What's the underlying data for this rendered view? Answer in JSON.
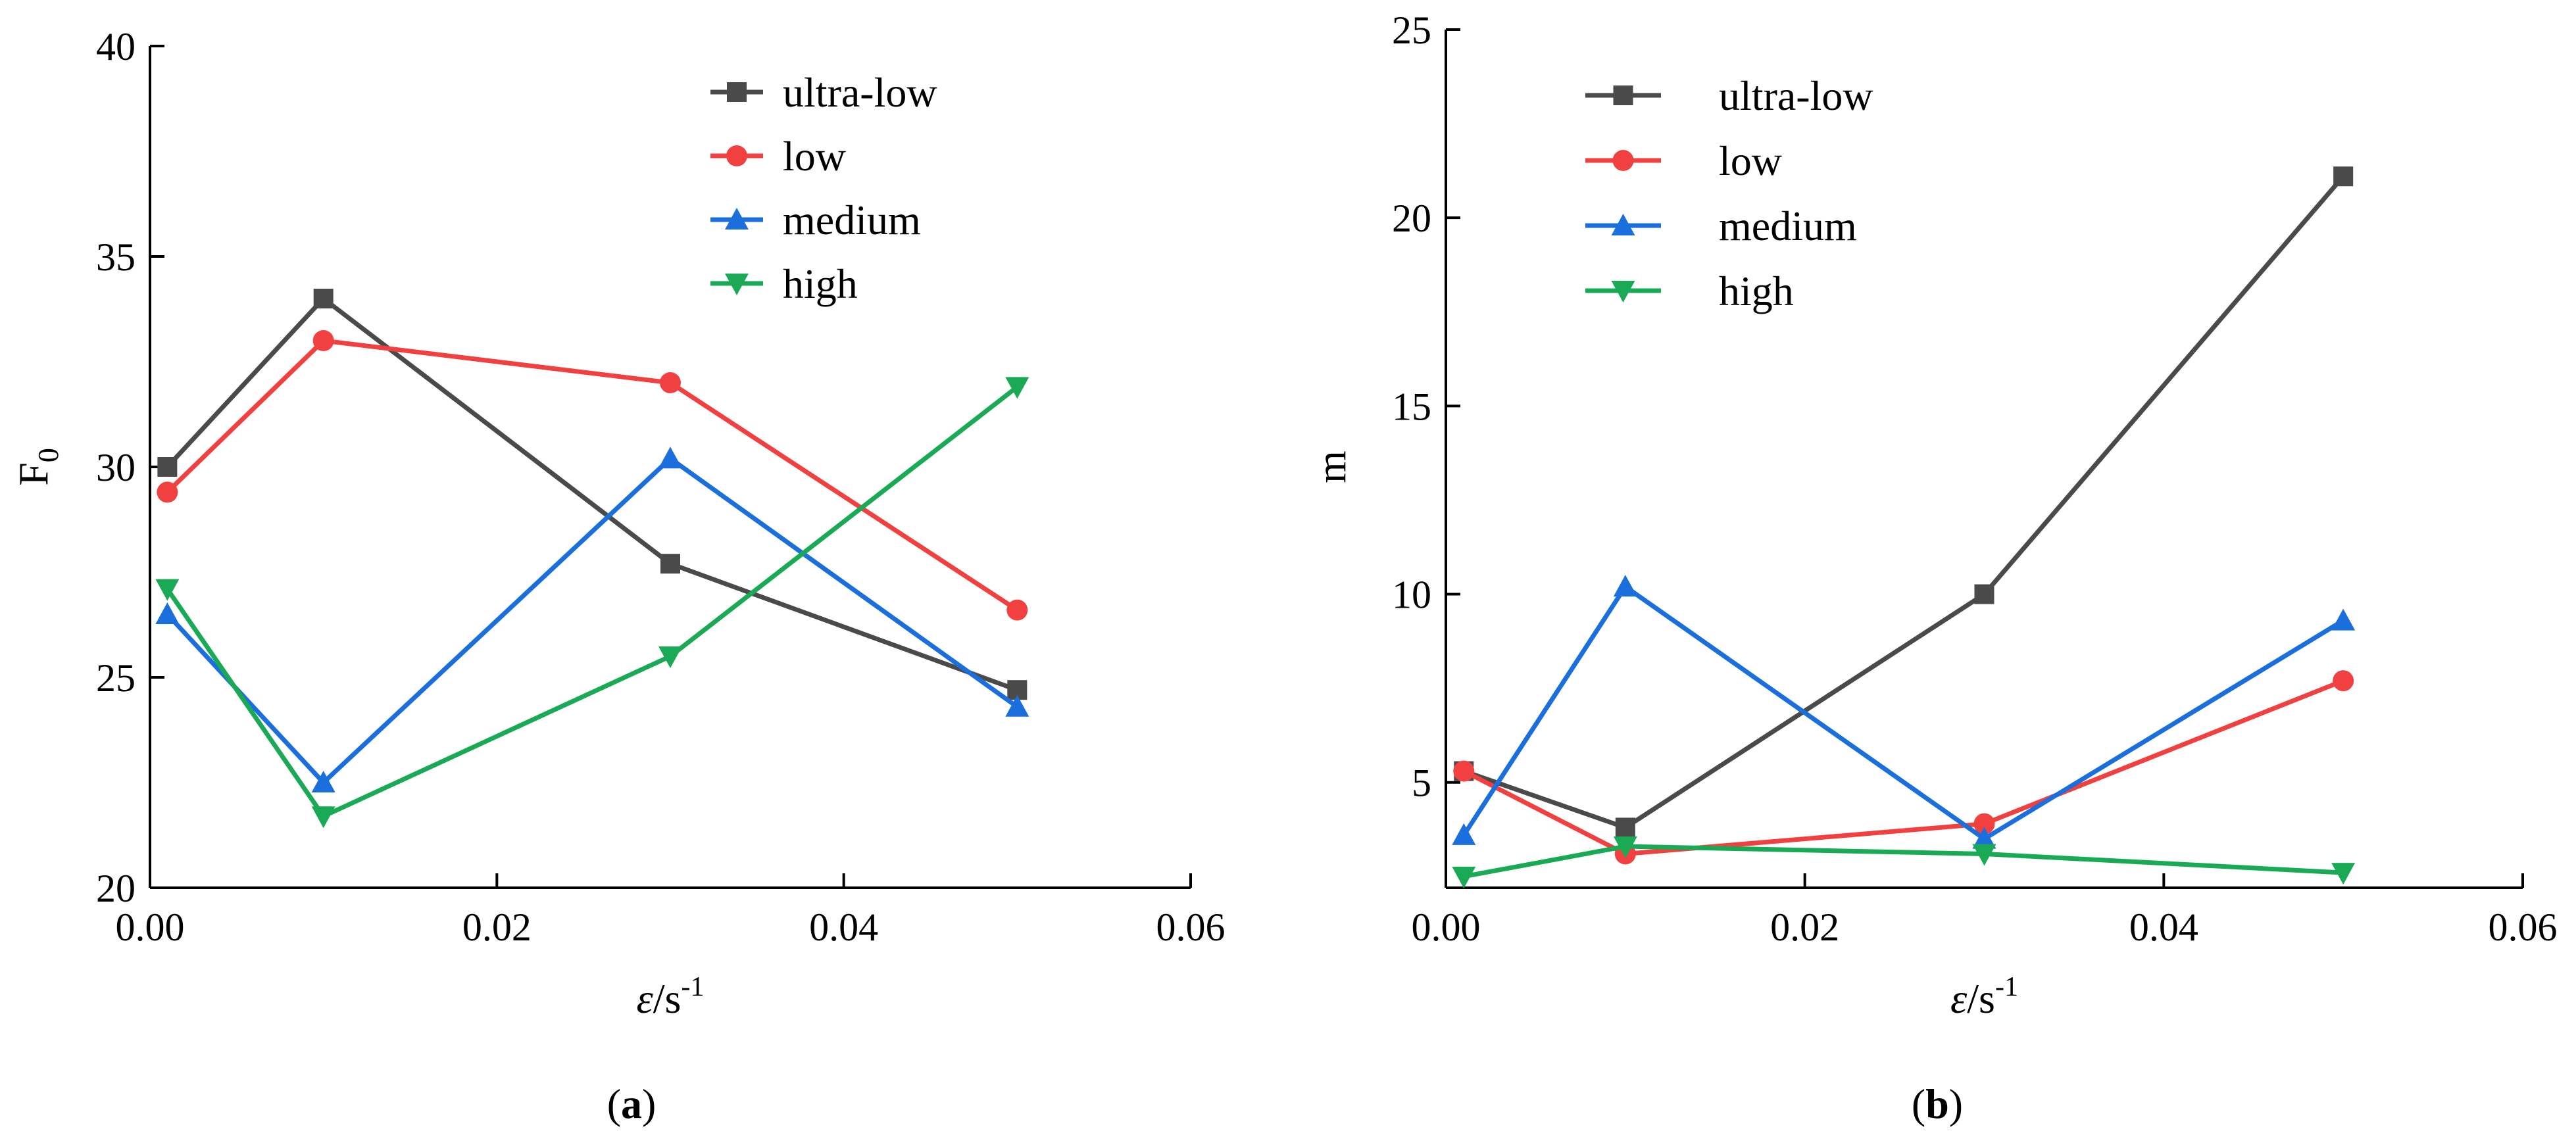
{
  "chart_data": [
    {
      "type": "line",
      "panel": "(a)",
      "panel_letter": "a",
      "xlabel": "ε/s",
      "xlabel_exp": "-1",
      "ylabel": "F",
      "ylabel_sub": "0",
      "xlim": [
        0.0,
        0.06
      ],
      "ylim": [
        20,
        40
      ],
      "xticks": [
        0.0,
        0.02,
        0.04,
        0.06
      ],
      "xtick_labels": [
        "0.00",
        "0.02",
        "0.04",
        "0.06"
      ],
      "yticks": [
        20,
        25,
        30,
        35,
        40
      ],
      "ytick_labels": [
        "20",
        "25",
        "30",
        "35",
        "40"
      ],
      "x": [
        0.001,
        0.01,
        0.03,
        0.05
      ],
      "legend_position": "top-right",
      "series": [
        {
          "name": "ultra-low",
          "color": "#4a4a4a",
          "marker": "square",
          "values": [
            30.0,
            34.0,
            27.7,
            24.7
          ]
        },
        {
          "name": "low",
          "color": "#f04040",
          "marker": "circle",
          "values": [
            29.4,
            33.0,
            32.0,
            26.6
          ]
        },
        {
          "name": "medium",
          "color": "#1a6fdc",
          "marker": "triangle-up",
          "values": [
            26.5,
            22.5,
            30.2,
            24.3
          ]
        },
        {
          "name": "high",
          "color": "#1aaa55",
          "marker": "triangle-down",
          "values": [
            27.1,
            21.7,
            25.5,
            31.9
          ]
        }
      ]
    },
    {
      "type": "line",
      "panel": "(b)",
      "panel_letter": "b",
      "xlabel": "ε/s",
      "xlabel_exp": "-1",
      "ylabel": "m",
      "ylabel_sub": "",
      "xlim": [
        0.0,
        0.06
      ],
      "ylim": [
        2.2,
        25
      ],
      "xticks": [
        0.0,
        0.02,
        0.04,
        0.06
      ],
      "xtick_labels": [
        "0.00",
        "0.02",
        "0.04",
        "0.06"
      ],
      "yticks": [
        5,
        10,
        15,
        20,
        25
      ],
      "ytick_labels": [
        "5",
        "10",
        "15",
        "20",
        "25"
      ],
      "x": [
        0.001,
        0.01,
        0.03,
        0.05
      ],
      "legend_position": "top-left",
      "series": [
        {
          "name": "ultra-low",
          "color": "#4a4a4a",
          "marker": "square",
          "values": [
            5.3,
            3.8,
            10.0,
            21.1
          ]
        },
        {
          "name": "low",
          "color": "#f04040",
          "marker": "circle",
          "values": [
            5.3,
            3.1,
            3.9,
            7.7
          ]
        },
        {
          "name": "medium",
          "color": "#1a6fdc",
          "marker": "triangle-up",
          "values": [
            3.6,
            10.2,
            3.5,
            9.3
          ]
        },
        {
          "name": "high",
          "color": "#1aaa55",
          "marker": "triangle-down",
          "values": [
            2.5,
            3.3,
            3.1,
            2.6
          ]
        }
      ]
    }
  ]
}
